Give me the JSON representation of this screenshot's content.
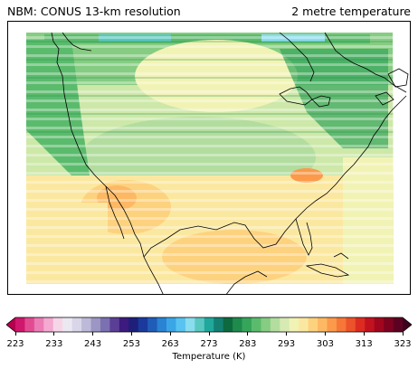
{
  "header": {
    "left_title": "NBM: CONUS 13-km resolution",
    "right_title": "2 metre temperature"
  },
  "map": {
    "region": "CONUS",
    "field": "2 metre temperature",
    "coastline_color": "#000000",
    "stripe_pattern": "horizontal bands"
  },
  "colorbar": {
    "label": "Temperature (K)",
    "ticks": [
      "223",
      "233",
      "243",
      "253",
      "263",
      "273",
      "283",
      "293",
      "303",
      "313",
      "323"
    ],
    "colors": [
      "#b5004f",
      "#d0176d",
      "#e24b92",
      "#ec7cb5",
      "#f4a9d0",
      "#f7d5e8",
      "#ece8f2",
      "#d8d6e8",
      "#bcbad8",
      "#9c96c4",
      "#7b70b0",
      "#5b3f96",
      "#3c1a7e",
      "#1d1f7a",
      "#1a3a9c",
      "#1f5db8",
      "#2a83d3",
      "#3aa6e6",
      "#58c3f0",
      "#8adcef",
      "#59c8c0",
      "#20a89c",
      "#138072",
      "#0d6a3f",
      "#1e8a4c",
      "#35a55a",
      "#5bbb6c",
      "#86cc82",
      "#b2dd9f",
      "#d7eab3",
      "#f1f3b5",
      "#fbe8a0",
      "#fdd27f",
      "#fdb863",
      "#fb9a4a",
      "#f67738",
      "#ec532a",
      "#dc2c22",
      "#c2121f",
      "#a0061e",
      "#7e0220",
      "#5d0122",
      "#3e0020"
    ]
  }
}
